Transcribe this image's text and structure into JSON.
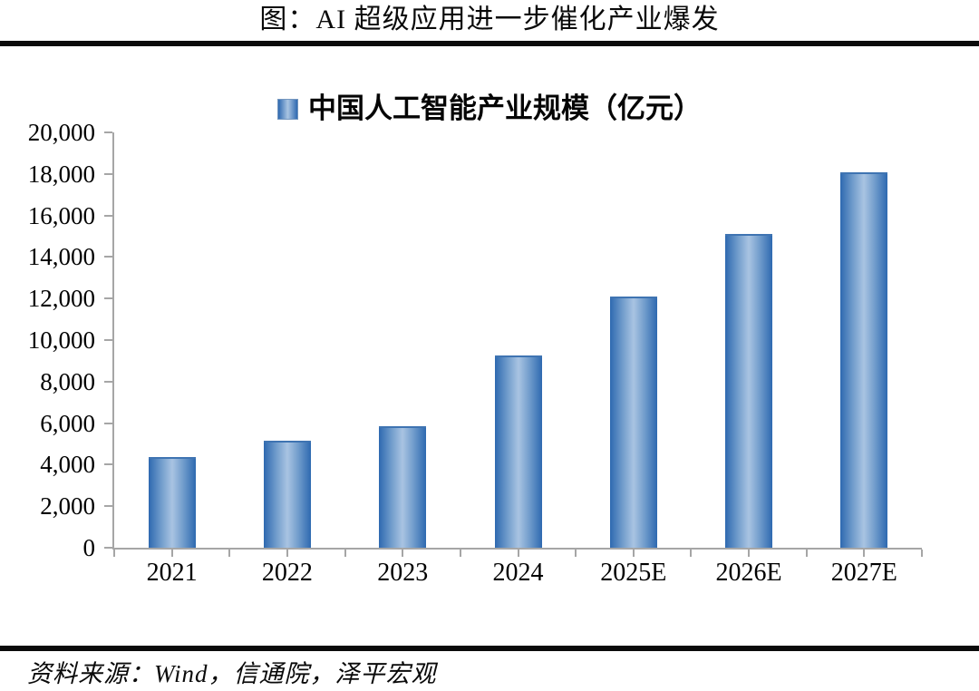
{
  "page": {
    "title": "图：AI 超级应用进一步催化产业爆发",
    "source": "资料来源：Wind，信通院，泽平宏观"
  },
  "chart_data": {
    "type": "bar",
    "title": "图：AI 超级应用进一步催化产业爆发",
    "legend": "中国人工智能产业规模（亿元）",
    "unit": "亿元",
    "categories": [
      "2021",
      "2022",
      "2023",
      "2024",
      "2025E",
      "2026E",
      "2027E"
    ],
    "values": [
      4300,
      5080,
      5784,
      9150,
      12000,
      15000,
      18000
    ],
    "ylim": [
      0,
      20000
    ],
    "ytick_step": 2000,
    "ytick_labels": [
      "0",
      "2,000",
      "4,000",
      "6,000",
      "8,000",
      "10,000",
      "12,000",
      "14,000",
      "16,000",
      "18,000",
      "20,000"
    ],
    "grid": false,
    "legend_position": "top-center",
    "colors": {
      "bar_edge": "#2e69b0",
      "bar_center": "#a9c4e2",
      "axis": "#a6a6a6",
      "text": "#000000",
      "rule": "#0b0b0b"
    }
  }
}
